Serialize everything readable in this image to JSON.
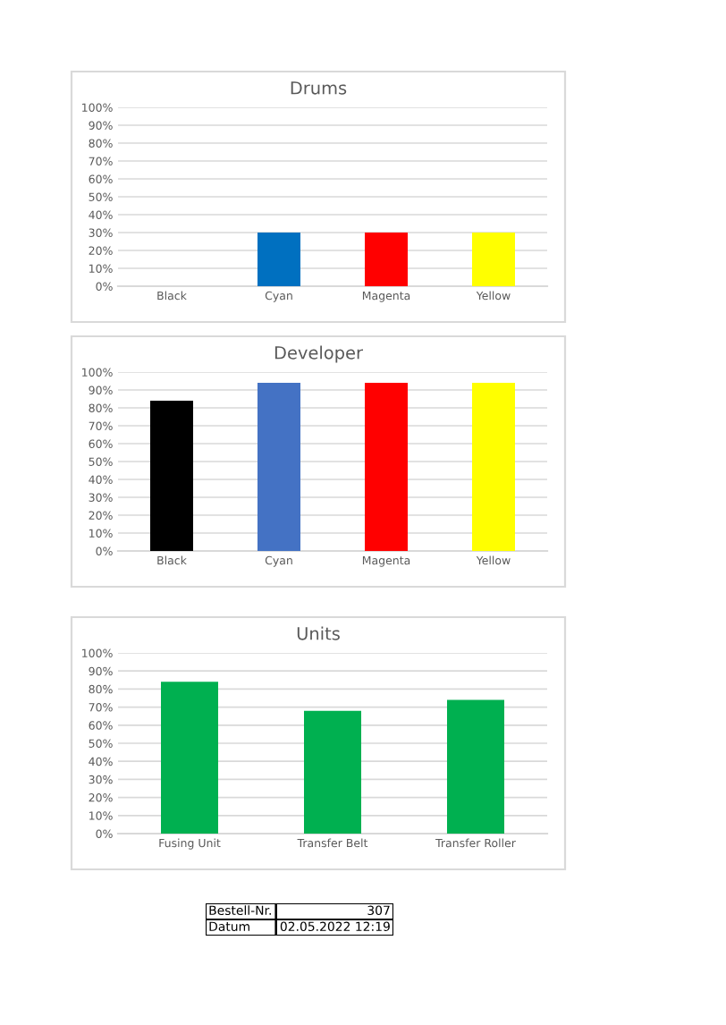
{
  "chart_data": [
    {
      "type": "bar",
      "title": "Drums",
      "categories": [
        "Black",
        "Cyan",
        "Magenta",
        "Yellow"
      ],
      "values": [
        0,
        0.3,
        0.3,
        0.3
      ],
      "colors": [
        "#000000",
        "#0070c0",
        "#ff0000",
        "#ffff00"
      ],
      "ylim": [
        0,
        1
      ],
      "yticks": [
        {
          "value": 0,
          "label": "0%"
        },
        {
          "value": 0.1,
          "label": "10%"
        },
        {
          "value": 0.2,
          "label": "20%"
        },
        {
          "value": 0.3,
          "label": "30%"
        },
        {
          "value": 0.4,
          "label": "40%"
        },
        {
          "value": 0.5,
          "label": "50%"
        },
        {
          "value": 0.6,
          "label": "60%"
        },
        {
          "value": 0.7,
          "label": "70%"
        },
        {
          "value": 0.8,
          "label": "80%"
        },
        {
          "value": 0.9,
          "label": "90%"
        },
        {
          "value": 1,
          "label": "100%"
        }
      ],
      "grid": "y"
    },
    {
      "type": "bar",
      "title": "Developer",
      "categories": [
        "Black",
        "Cyan",
        "Magenta",
        "Yellow"
      ],
      "values": [
        0.84,
        0.94,
        0.94,
        0.94
      ],
      "colors": [
        "#000000",
        "#4472c4",
        "#ff0000",
        "#ffff00"
      ],
      "ylim": [
        0,
        1
      ],
      "yticks": [
        {
          "value": 0,
          "label": "0%"
        },
        {
          "value": 0.1,
          "label": "10%"
        },
        {
          "value": 0.2,
          "label": "20%"
        },
        {
          "value": 0.3,
          "label": "30%"
        },
        {
          "value": 0.4,
          "label": "40%"
        },
        {
          "value": 0.5,
          "label": "50%"
        },
        {
          "value": 0.6,
          "label": "60%"
        },
        {
          "value": 0.7,
          "label": "70%"
        },
        {
          "value": 0.8,
          "label": "80%"
        },
        {
          "value": 0.9,
          "label": "90%"
        },
        {
          "value": 1,
          "label": "100%"
        }
      ],
      "grid": "y"
    },
    {
      "type": "bar",
      "title": "Units",
      "categories": [
        "Fusing Unit",
        "Transfer Belt",
        "Transfer Roller"
      ],
      "values": [
        0.84,
        0.68,
        0.74
      ],
      "colors": [
        "#00b050",
        "#00b050",
        "#00b050"
      ],
      "ylim": [
        0,
        1
      ],
      "yticks": [
        {
          "value": 0,
          "label": "0%"
        },
        {
          "value": 0.1,
          "label": "10%"
        },
        {
          "value": 0.2,
          "label": "20%"
        },
        {
          "value": 0.3,
          "label": "30%"
        },
        {
          "value": 0.4,
          "label": "40%"
        },
        {
          "value": 0.5,
          "label": "50%"
        },
        {
          "value": 0.6,
          "label": "60%"
        },
        {
          "value": 0.7,
          "label": "70%"
        },
        {
          "value": 0.8,
          "label": "80%"
        },
        {
          "value": 0.9,
          "label": "90%"
        },
        {
          "value": 1,
          "label": "100%"
        }
      ],
      "grid": "y"
    },
    {
      "type": "other",
      "annotations": [
        "Bestell-Nr.",
        "307",
        "Datum",
        "02.05.2022 12:19"
      ]
    }
  ]
}
